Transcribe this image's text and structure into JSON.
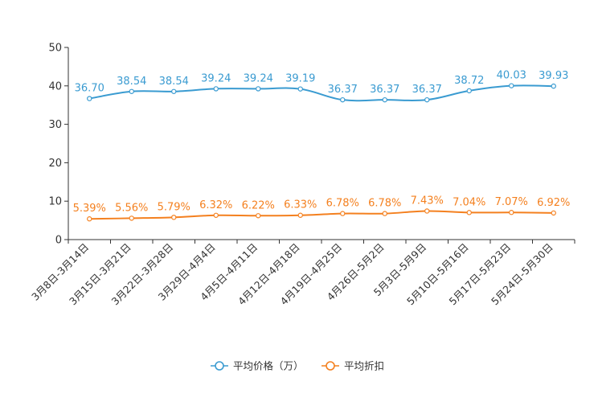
{
  "chart_data": {
    "type": "line",
    "title": "",
    "xlabel": "",
    "ylabel": "",
    "ylim": [
      0,
      50
    ],
    "yticks": [
      0,
      10,
      20,
      30,
      40,
      50
    ],
    "grid": false,
    "legend_position": "bottom-center",
    "categories": [
      "3月8日-3月14日",
      "3月15日-3月21日",
      "3月22日-3月28日",
      "3月29日-4月4日",
      "4月5日-4月11日",
      "4月12日-4月18日",
      "4月19日-4月25日",
      "4月26日-5月2日",
      "5月3日-5月9日",
      "5月10日-5月16日",
      "5月17日-5月23日",
      "5月24日-5月30日"
    ],
    "series": [
      {
        "name": "平均价格（万）",
        "color": "#3a9bd1",
        "values": [
          36.7,
          38.54,
          38.54,
          39.24,
          39.24,
          39.19,
          36.37,
          36.37,
          36.37,
          38.72,
          40.03,
          39.93
        ],
        "labels": [
          "36.70",
          "38.54",
          "38.54",
          "39.24",
          "39.24",
          "39.19",
          "36.37",
          "36.37",
          "36.37",
          "38.72",
          "40.03",
          "39.93"
        ]
      },
      {
        "name": "平均折扣",
        "color": "#f4801f",
        "values": [
          5.39,
          5.56,
          5.79,
          6.32,
          6.22,
          6.33,
          6.78,
          6.78,
          7.43,
          7.04,
          7.07,
          6.92
        ],
        "labels": [
          "5.39%",
          "5.56%",
          "5.79%",
          "6.32%",
          "6.22%",
          "6.33%",
          "6.78%",
          "6.78%",
          "7.43%",
          "7.04%",
          "7.07%",
          "6.92%"
        ]
      }
    ]
  }
}
